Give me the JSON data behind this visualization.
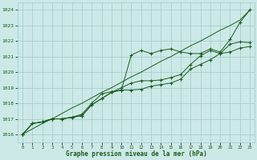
{
  "xlabel": "Graphe pression niveau de la mer (hPa)",
  "x_ticks": [
    0,
    1,
    2,
    3,
    4,
    5,
    6,
    7,
    8,
    9,
    10,
    11,
    12,
    13,
    14,
    15,
    16,
    17,
    18,
    19,
    20,
    21,
    22,
    23
  ],
  "ylim": [
    1015.5,
    1024.5
  ],
  "yticks": [
    1016,
    1017,
    1018,
    1019,
    1020,
    1021,
    1022,
    1023,
    1024
  ],
  "background_color": "#cce9e7",
  "grid_color": "#9eccc8",
  "line_color": "#1a5c1a",
  "series_straight": [
    1016.0,
    1016.35,
    1016.7,
    1017.0,
    1017.35,
    1017.7,
    1018.0,
    1018.35,
    1018.7,
    1019.0,
    1019.35,
    1019.7,
    1020.0,
    1020.35,
    1020.7,
    1021.0,
    1021.35,
    1021.7,
    1022.0,
    1022.35,
    1022.7,
    1023.0,
    1023.35,
    1024.0
  ],
  "series1": [
    1016.0,
    1016.7,
    1016.8,
    1017.0,
    1017.0,
    1017.1,
    1017.3,
    1018.0,
    1018.6,
    1018.75,
    1018.85,
    1021.1,
    1021.4,
    1021.2,
    1021.4,
    1021.5,
    1021.3,
    1021.2,
    1021.2,
    1021.5,
    1021.3,
    1022.1,
    1023.2,
    1024.0
  ],
  "series2": [
    1016.0,
    1016.7,
    1016.8,
    1017.0,
    1017.0,
    1017.1,
    1017.2,
    1017.9,
    1018.3,
    1018.7,
    1018.85,
    1018.85,
    1018.9,
    1019.1,
    1019.2,
    1019.3,
    1019.55,
    1020.2,
    1020.5,
    1020.8,
    1021.2,
    1021.3,
    1021.55,
    1021.65
  ],
  "series3": [
    1016.0,
    1016.7,
    1016.8,
    1017.0,
    1017.0,
    1017.1,
    1017.2,
    1017.9,
    1018.3,
    1018.7,
    1019.0,
    1019.3,
    1019.45,
    1019.45,
    1019.5,
    1019.65,
    1019.85,
    1020.5,
    1021.05,
    1021.4,
    1021.2,
    1021.8,
    1021.95,
    1021.9
  ],
  "figsize": [
    3.2,
    2.0
  ],
  "dpi": 100
}
